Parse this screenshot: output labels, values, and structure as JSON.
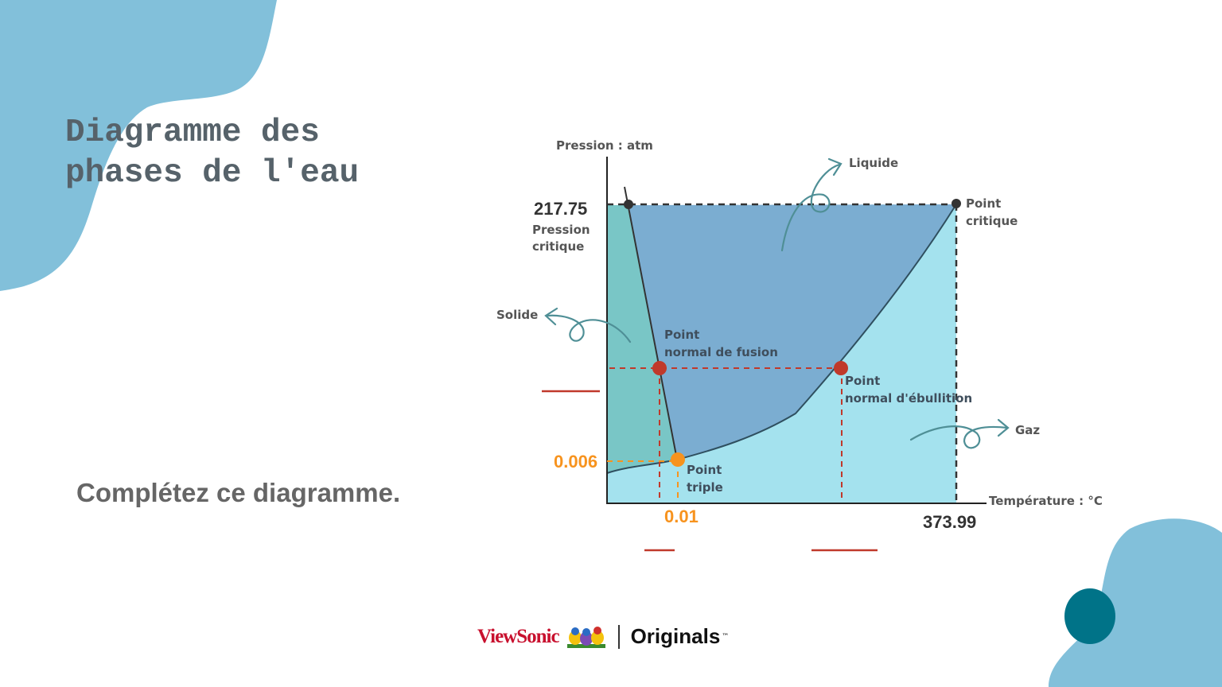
{
  "slide": {
    "title_line1": "Diagramme des",
    "title_line2": "phases de l'eau",
    "instruction": "Complétez ce diagramme."
  },
  "diagram": {
    "y_axis_label": "Pression : atm",
    "x_axis_label": "Température : °C",
    "critical_pressure_value": "217.75",
    "critical_pressure_label_1": "Pression",
    "critical_pressure_label_2": "critique",
    "triple_pressure_value": "0.006",
    "triple_temp_value": "0.01",
    "critical_temp_value": "373.99",
    "phases": {
      "solid": "Solide",
      "liquid": "Liquide",
      "gas": "Gaz"
    },
    "points": {
      "critical_1": "Point",
      "critical_2": "critique",
      "fusion_1": "Point",
      "fusion_2": "normal de fusion",
      "boiling_1": "Point",
      "boiling_2": "normal d'ébullition",
      "triple_1": "Point",
      "triple_2": "triple"
    },
    "colors": {
      "solid": "#79c6c6",
      "liquid": "#7badd1",
      "gas": "#a4e2ee",
      "normal_points": "#c0392b",
      "triple_point": "#f7931e"
    }
  },
  "branding": {
    "brand": "ViewSonic",
    "product": "Originals",
    "tm": "™"
  },
  "decor": {
    "blob_color": "#82c0da",
    "blob_dark": "#007388"
  }
}
